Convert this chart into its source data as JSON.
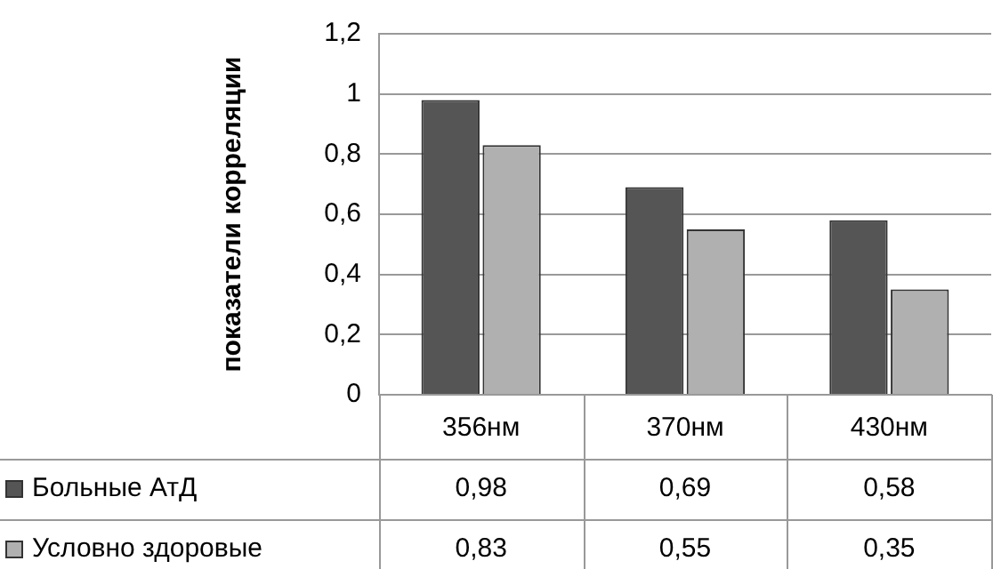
{
  "chart_data": {
    "type": "bar",
    "ylabel": "показатели корреляции",
    "categories": [
      "356нм",
      "370нм",
      "430нм"
    ],
    "series": [
      {
        "name": "Больные АтД",
        "color": "#555555",
        "values": [
          0.98,
          0.69,
          0.58
        ],
        "value_labels": [
          "0,98",
          "0,69",
          "0,58"
        ]
      },
      {
        "name": "Условно здоровые",
        "color": "#b0b0b0",
        "values": [
          0.83,
          0.55,
          0.35
        ],
        "value_labels": [
          "0,83",
          "0,55",
          "0,35"
        ]
      }
    ],
    "ylim": [
      0,
      1.2
    ],
    "yticks": [
      0,
      {
        "value": 0.2,
        "label": "0,2"
      },
      {
        "value": 0.4,
        "label": "0,4"
      },
      {
        "value": 0.6,
        "label": "0,6"
      },
      {
        "value": 0.8,
        "label": "0,8"
      },
      1,
      {
        "value": 1.2,
        "label": "1,2"
      }
    ],
    "grid": "y",
    "legend": "bottom"
  }
}
